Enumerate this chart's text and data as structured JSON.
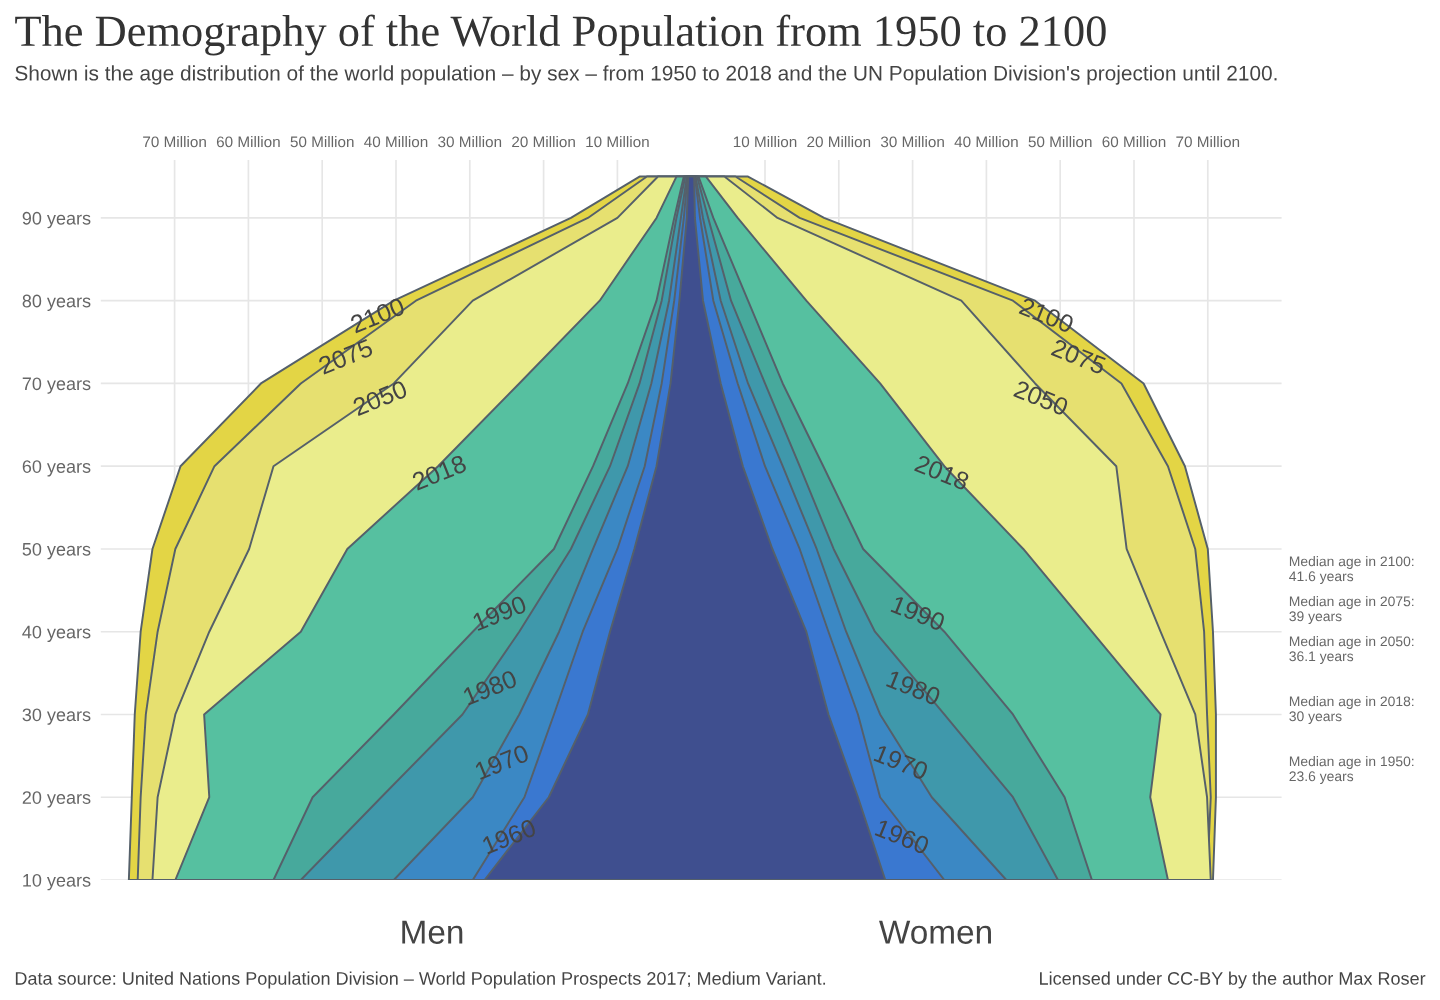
{
  "chart_data": {
    "type": "area",
    "orientation": "horizontal",
    "title": "The Demography of the World Population from 1950 to 2100",
    "subtitle": "Shown is the age distribution of the world population – by sex – from 1950 to 2018 and the UN Population Division's projection until 2100.",
    "xlim": [
      -80,
      80
    ],
    "xticks": [
      {
        "value": -70,
        "label": "70 Million"
      },
      {
        "value": -60,
        "label": "60 Million"
      },
      {
        "value": -50,
        "label": "50 Million"
      },
      {
        "value": -40,
        "label": "40 Million"
      },
      {
        "value": -30,
        "label": "30 Million"
      },
      {
        "value": -20,
        "label": "20 Million"
      },
      {
        "value": -10,
        "label": "10 Million"
      },
      {
        "value": 10,
        "label": "10 Million"
      },
      {
        "value": 20,
        "label": "20 Million"
      },
      {
        "value": 30,
        "label": "30 Million"
      },
      {
        "value": 40,
        "label": "40 Million"
      },
      {
        "value": 50,
        "label": "50 Million"
      },
      {
        "value": 60,
        "label": "60 Million"
      },
      {
        "value": 70,
        "label": "70 Million"
      }
    ],
    "ylim": [
      10,
      97
    ],
    "yticks": [
      {
        "value": 10,
        "label": "10 years"
      },
      {
        "value": 20,
        "label": "20 years"
      },
      {
        "value": 30,
        "label": "30 years"
      },
      {
        "value": 40,
        "label": "40 years"
      },
      {
        "value": 50,
        "label": "50 years"
      },
      {
        "value": 60,
        "label": "60 years"
      },
      {
        "value": 70,
        "label": "70 years"
      },
      {
        "value": 80,
        "label": "80 years"
      },
      {
        "value": 90,
        "label": "90 years"
      }
    ],
    "grid": true,
    "x": [
      10,
      20,
      30,
      40,
      50,
      60,
      70,
      80,
      90,
      95,
      95,
      90,
      80,
      70,
      60,
      50,
      40,
      30,
      20,
      10
    ],
    "series": [
      {
        "name": "2100",
        "color": "#e3d545",
        "values": [
          70.7,
          71.1,
          71.1,
          70.7,
          70,
          66.9,
          61.3,
          46.6,
          18,
          7.7,
          -7,
          -16.3,
          -40.3,
          -58.3,
          -69.2,
          -73,
          -74.6,
          -75.4,
          -75.8,
          -76.2
        ]
      },
      {
        "name": "2075",
        "color": "#e6e070",
        "values": [
          69.9,
          70.4,
          69.9,
          69.5,
          68.3,
          64.6,
          58.3,
          43.6,
          14.7,
          6,
          -6,
          -14,
          -37.3,
          -52.9,
          -64.6,
          -69.9,
          -72.3,
          -73.9,
          -74.6,
          -75
        ]
      },
      {
        "name": "2050",
        "color": "#eaed8c",
        "values": [
          70.4,
          69.9,
          68.3,
          63.6,
          59,
          57.6,
          46.6,
          36.6,
          11.7,
          4.5,
          -4.5,
          -10,
          -29.6,
          -40.3,
          -56.6,
          -59.9,
          -65.3,
          -69.9,
          -72.3,
          -73
        ]
      },
      {
        "name": "2018",
        "color": "#56c0a0",
        "values": [
          64.6,
          62.2,
          63.6,
          54.3,
          45,
          34.3,
          25.6,
          15.6,
          6.3,
          2,
          -2,
          -4.7,
          -12.4,
          -23.3,
          -34.3,
          -46.6,
          -52.9,
          -66,
          -65.3,
          -69.9
        ]
      },
      {
        "name": "1990",
        "color": "#47a99c",
        "values": [
          54.3,
          50.6,
          43.6,
          34.3,
          23.3,
          17.9,
          12.4,
          7.7,
          3,
          1,
          -1,
          -2.3,
          -4.7,
          -8.6,
          -13.3,
          -18.6,
          -29.6,
          -40.3,
          -51.3,
          -56.6
        ]
      },
      {
        "name": "1980",
        "color": "#3f98ab",
        "values": [
          49.7,
          43.6,
          34.3,
          24.9,
          19.3,
          14.7,
          10,
          5.4,
          2.3,
          0.8,
          -0.8,
          -2,
          -4,
          -7,
          -11,
          -16.3,
          -23.3,
          -31,
          -42,
          -52.9
        ]
      },
      {
        "name": "1970",
        "color": "#3b88c4",
        "values": [
          42.7,
          32.6,
          25.6,
          21,
          17,
          12.4,
          7.7,
          4,
          1.6,
          0.6,
          -0.6,
          -1.4,
          -3,
          -5.4,
          -8.6,
          -13.3,
          -17.9,
          -23.3,
          -29.6,
          -40.3
        ]
      },
      {
        "name": "1960",
        "color": "#3a78d0",
        "values": [
          34.3,
          25.6,
          22.6,
          18.6,
          14.7,
          10,
          6.3,
          3,
          1.2,
          0.5,
          -0.5,
          -1,
          -2.3,
          -4,
          -6.3,
          -10,
          -14.7,
          -18.6,
          -22.6,
          -29.6
        ]
      },
      {
        "color": "#3f4f8f",
        "values": [
          26.3,
          22.6,
          18.6,
          15.6,
          11,
          7,
          4,
          1.6,
          0.5,
          0.4,
          -0.4,
          -0.6,
          -1.6,
          -2.8,
          -4.7,
          -7.7,
          -11,
          -14,
          -19.3,
          -28
        ]
      }
    ],
    "annotations": [
      "Men",
      "Women",
      "Median age in 2100:\n41.6 years",
      "Median age in 2075:\n39 years",
      "Median age in 2050:\n36.1 years",
      "Median age in 2018:\n30 years",
      "Median age in 1950:\n23.6 years",
      "Data source: United Nations Population Division – World Population Prospects 2017; Medium Variant.",
      "Licensed under CC-BY by the author Max Roser"
    ]
  }
}
